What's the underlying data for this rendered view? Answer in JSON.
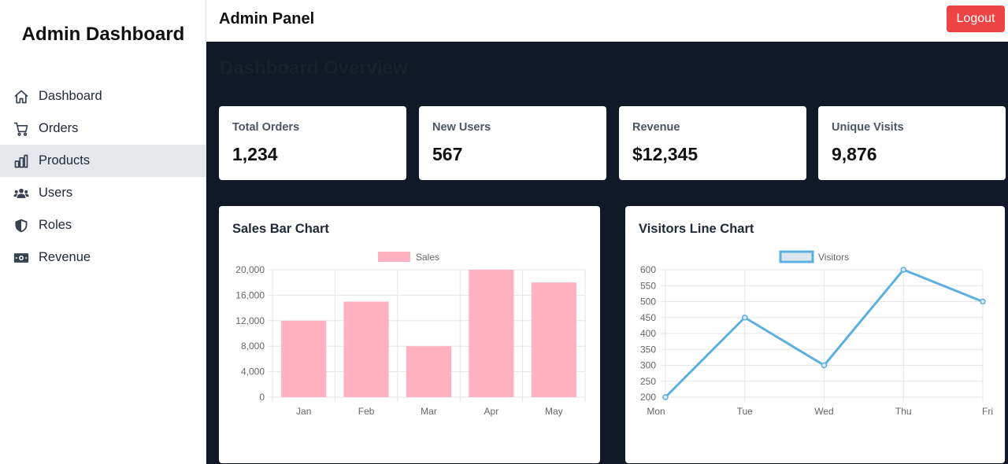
{
  "sidebar": {
    "brand": "Admin Dashboard",
    "items": [
      {
        "label": "Dashboard",
        "icon": "home-icon"
      },
      {
        "label": "Orders",
        "icon": "cart-icon"
      },
      {
        "label": "Products",
        "icon": "bar-chart-icon",
        "active": true
      },
      {
        "label": "Users",
        "icon": "users-icon"
      },
      {
        "label": "Roles",
        "icon": "shield-icon"
      },
      {
        "label": "Revenue",
        "icon": "money-icon"
      }
    ]
  },
  "header": {
    "title": "Admin Panel",
    "logout_label": "Logout"
  },
  "main": {
    "title": "Dashboard Overview",
    "stats": [
      {
        "label": "Total Orders",
        "value": "1,234"
      },
      {
        "label": "New Users",
        "value": "567"
      },
      {
        "label": "Revenue",
        "value": "$12,345"
      },
      {
        "label": "Unique Visits",
        "value": "9,876"
      }
    ]
  },
  "colors": {
    "accent_danger": "#ef4444",
    "main_bg": "#111827",
    "bar_fill": "#ffb1c1",
    "line_stroke": "#5cb0e0"
  },
  "chart_data": [
    {
      "type": "bar",
      "title": "Sales Bar Chart",
      "legend": "Sales",
      "categories": [
        "Jan",
        "Feb",
        "Mar",
        "Apr",
        "May"
      ],
      "values": [
        12000,
        15000,
        8000,
        20000,
        18000
      ],
      "ylim": [
        0,
        20000
      ],
      "yticks": [
        0,
        4000,
        8000,
        12000,
        16000,
        20000
      ],
      "ytick_labels": [
        "0",
        "4,000",
        "8,000",
        "12,000",
        "16,000",
        "20,000"
      ]
    },
    {
      "type": "line",
      "title": "Visitors Line Chart",
      "legend": "Visitors",
      "categories": [
        "Mon",
        "Tue",
        "Wed",
        "Thu",
        "Fri"
      ],
      "values": [
        200,
        450,
        300,
        600,
        500
      ],
      "ylim": [
        200,
        600
      ],
      "yticks": [
        200,
        250,
        300,
        350,
        400,
        450,
        500,
        550,
        600
      ],
      "ytick_labels": [
        "200",
        "250",
        "300",
        "350",
        "400",
        "450",
        "500",
        "550",
        "600"
      ]
    }
  ]
}
